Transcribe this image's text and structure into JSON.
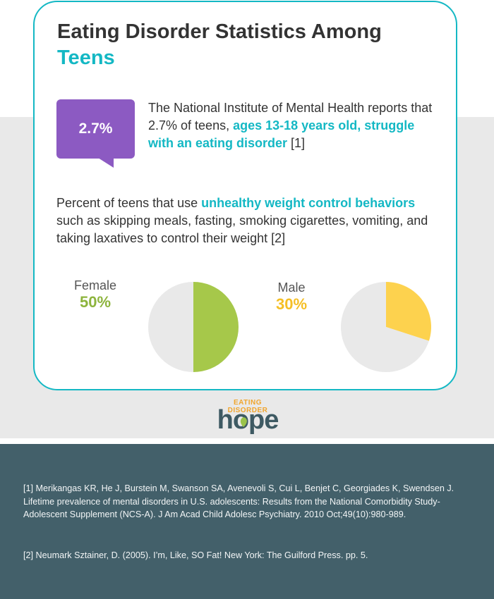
{
  "header": {
    "title_main": "Eating Disorder Statistics Among",
    "title_accent": "Teens"
  },
  "stat_bubble": {
    "value": "2.7%"
  },
  "nimh_text": {
    "part1": "The National Institute of Mental Health reports that 2.7% of teens,",
    "highlight": "ages 13-18 years old, struggle with an eating disorder",
    "part2": "[1]"
  },
  "behaviors_text": {
    "part1": "Percent of teens that use",
    "highlight": "unhealthy weight control behaviors",
    "part2": "such as skipping meals, fasting, smoking cigarettes, vomiting, and taking laxatives to control their weight [2]"
  },
  "chart_data": [
    {
      "type": "pie",
      "name": "Female",
      "label": "50%",
      "slices": [
        {
          "value": 50,
          "color": "#a6c84a"
        },
        {
          "value": 50,
          "color": "#e9e9e9"
        }
      ]
    },
    {
      "type": "pie",
      "name": "Male",
      "label": "30%",
      "slices": [
        {
          "value": 30,
          "color": "#fdd24e"
        },
        {
          "value": 70,
          "color": "#e9e9e9"
        }
      ]
    }
  ],
  "colors": {
    "accent": "#14b8c4",
    "purple": "#8c5ac2",
    "female": "#a6c84a",
    "male": "#fdd24e",
    "footer_bg": "#43606a"
  },
  "logo": {
    "top_text": "EATING DISORDER",
    "word": "hope"
  },
  "footer": {
    "ref1": "[1] Merikangas KR, He J, Burstein M, Swanson SA, Avenevoli S, Cui L, Benjet C, Georgiades K, Swendsen J. Lifetime prevalence of mental disorders in U.S. adolescents: Results from the National Comorbidity Study-Adolescent Supplement (NCS-A). J Am Acad Child Adolesc Psychiatry. 2010 Oct;49(10):980-989.",
    "ref2": "[2] Neumark Sztainer, D. (2005). I’m, Like, SO Fat! New York: The Guilford Press. pp. 5."
  }
}
